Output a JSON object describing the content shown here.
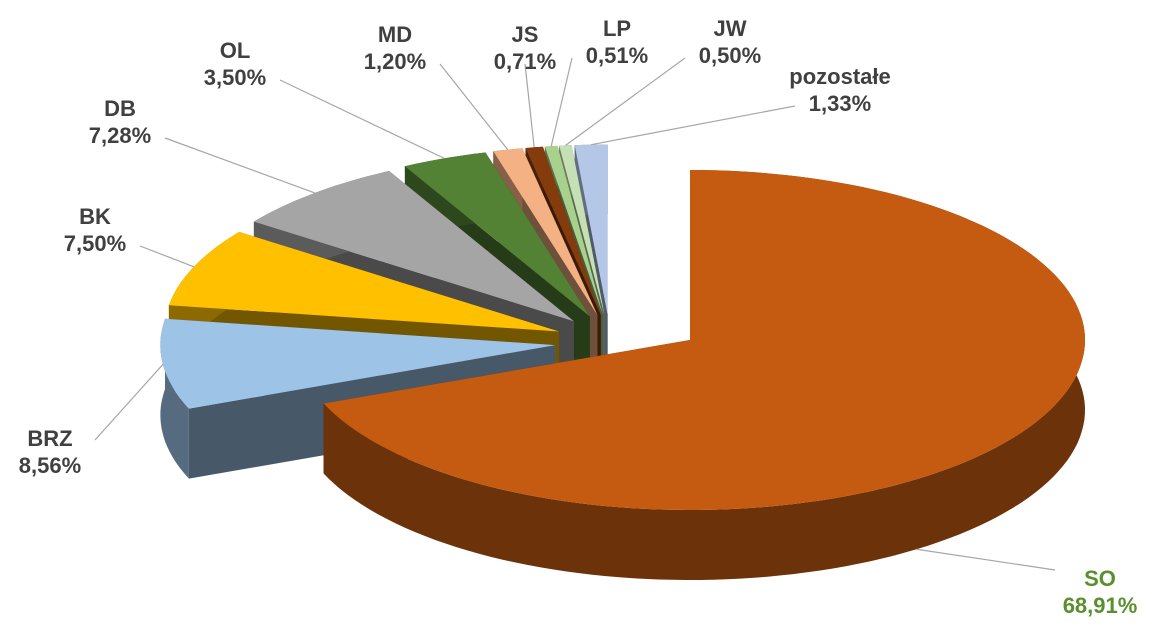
{
  "chart_data": {
    "type": "pie3d",
    "categories": [
      "SO",
      "BRZ",
      "BK",
      "DB",
      "OL",
      "MD",
      "JS",
      "LP",
      "JW",
      "pozostałe"
    ],
    "values": [
      68.91,
      8.56,
      7.5,
      7.28,
      3.5,
      1.2,
      0.71,
      0.51,
      0.5,
      1.33
    ],
    "value_labels": [
      "68,91%",
      "8,56%",
      "7,50%",
      "7,28%",
      "3,50%",
      "1,20%",
      "0,71%",
      "0,51%",
      "0,50%",
      "1,33%"
    ],
    "colors": [
      "#c55a11",
      "#9dc3e6",
      "#ffc000",
      "#a5a5a5",
      "#548235",
      "#f4b183",
      "#843c0c",
      "#a9d18e",
      "#c5e0b4",
      "#b4c7e7"
    ]
  }
}
